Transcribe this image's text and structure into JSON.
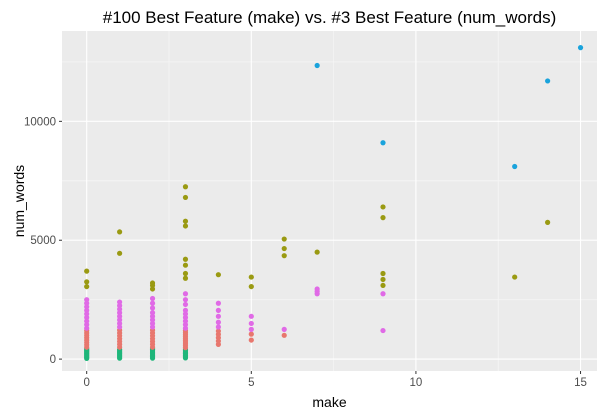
{
  "chart_data": {
    "type": "scatter",
    "title": "#100 Best Feature (make) vs. #3 Best Feature (num_words)",
    "xlabel": "make",
    "ylabel": "num_words",
    "xlim": [
      -0.75,
      15.5
    ],
    "ylim": [
      -500,
      13800
    ],
    "x_ticks": [
      0,
      5,
      10,
      15
    ],
    "y_ticks": [
      0,
      5000,
      10000
    ],
    "x_tick_labels": [
      "0",
      "5",
      "10",
      "15"
    ],
    "y_tick_labels": [
      "0",
      "5000",
      "10000"
    ],
    "grid": true,
    "legend": "none",
    "colors": {
      "panel_background": "#ebebeb",
      "grid_major": "#ffffff",
      "grid_minor": "#f5f5f5",
      "group1": "#f8766d",
      "group2": "#7cae00",
      "group3": "#00bfc4",
      "group4": "#c77cff",
      "group1_render": "#e8776e",
      "group2_render": "#9a9a12",
      "group3_render": "#1aa3dc",
      "group4_render": "#e06ae6",
      "green_render": "#1eb67a"
    },
    "series": [
      {
        "color_key": "green_render",
        "points": [
          [
            0,
            30
          ],
          [
            0,
            80
          ],
          [
            0,
            130
          ],
          [
            0,
            180
          ],
          [
            0,
            230
          ],
          [
            0,
            280
          ],
          [
            0,
            330
          ],
          [
            0,
            380
          ],
          [
            0,
            430
          ],
          [
            1,
            40
          ],
          [
            1,
            100
          ],
          [
            1,
            160
          ],
          [
            1,
            220
          ],
          [
            1,
            280
          ],
          [
            1,
            340
          ],
          [
            1,
            400
          ],
          [
            2,
            40
          ],
          [
            2,
            100
          ],
          [
            2,
            160
          ],
          [
            2,
            220
          ],
          [
            2,
            280
          ],
          [
            2,
            340
          ],
          [
            2,
            400
          ],
          [
            2,
            450
          ],
          [
            3,
            50
          ],
          [
            3,
            110
          ],
          [
            3,
            170
          ],
          [
            3,
            230
          ],
          [
            3,
            290
          ],
          [
            3,
            350
          ],
          [
            3,
            410
          ]
        ]
      },
      {
        "color_key": "group1_render",
        "points": [
          [
            0,
            500
          ],
          [
            0,
            600
          ],
          [
            0,
            700
          ],
          [
            0,
            800
          ],
          [
            0,
            900
          ],
          [
            0,
            1000
          ],
          [
            0,
            1100
          ],
          [
            0,
            1200
          ],
          [
            1,
            500
          ],
          [
            1,
            620
          ],
          [
            1,
            740
          ],
          [
            1,
            860
          ],
          [
            1,
            980
          ],
          [
            1,
            1100
          ],
          [
            1,
            1220
          ],
          [
            2,
            500
          ],
          [
            2,
            620
          ],
          [
            2,
            740
          ],
          [
            2,
            860
          ],
          [
            2,
            980
          ],
          [
            2,
            1100
          ],
          [
            2,
            1220
          ],
          [
            3,
            480
          ],
          [
            3,
            560
          ],
          [
            3,
            640
          ],
          [
            3,
            720
          ],
          [
            3,
            800
          ],
          [
            3,
            880
          ],
          [
            3,
            960
          ],
          [
            3,
            1040
          ],
          [
            3,
            1120
          ],
          [
            3,
            1200
          ],
          [
            4,
            620
          ],
          [
            4,
            760
          ],
          [
            4,
            900
          ],
          [
            4,
            1040
          ],
          [
            4,
            1180
          ],
          [
            5,
            800
          ],
          [
            5,
            1050
          ],
          [
            6,
            1000
          ]
        ]
      },
      {
        "color_key": "group4_render",
        "points": [
          [
            0,
            1300
          ],
          [
            0,
            1450
          ],
          [
            0,
            1600
          ],
          [
            0,
            1750
          ],
          [
            0,
            1900
          ],
          [
            0,
            2050
          ],
          [
            0,
            2200
          ],
          [
            0,
            2350
          ],
          [
            0,
            2500
          ],
          [
            1,
            1350
          ],
          [
            1,
            1500
          ],
          [
            1,
            1650
          ],
          [
            1,
            1800
          ],
          [
            1,
            1950
          ],
          [
            1,
            2100
          ],
          [
            1,
            2250
          ],
          [
            1,
            2400
          ],
          [
            2,
            1350
          ],
          [
            2,
            1500
          ],
          [
            2,
            1650
          ],
          [
            2,
            1800
          ],
          [
            2,
            1950
          ],
          [
            2,
            2150
          ],
          [
            2,
            2350
          ],
          [
            2,
            2550
          ],
          [
            3,
            1300
          ],
          [
            3,
            1450
          ],
          [
            3,
            1600
          ],
          [
            3,
            1750
          ],
          [
            3,
            1900
          ],
          [
            3,
            2050
          ],
          [
            3,
            2300
          ],
          [
            3,
            2500
          ],
          [
            3,
            2750
          ],
          [
            4,
            1350
          ],
          [
            4,
            1550
          ],
          [
            4,
            1800
          ],
          [
            4,
            2050
          ],
          [
            4,
            2350
          ],
          [
            5,
            1250
          ],
          [
            5,
            1500
          ],
          [
            5,
            1800
          ],
          [
            6,
            1250
          ],
          [
            7,
            2750
          ],
          [
            7,
            2850
          ],
          [
            7,
            2950
          ],
          [
            9,
            1200
          ],
          [
            9,
            2750
          ]
        ]
      },
      {
        "color_key": "group2_render",
        "points": [
          [
            0,
            3050
          ],
          [
            0,
            3250
          ],
          [
            0,
            3700
          ],
          [
            1,
            4450
          ],
          [
            1,
            5350
          ],
          [
            2,
            2950
          ],
          [
            2,
            3100
          ],
          [
            2,
            3200
          ],
          [
            3,
            3400
          ],
          [
            3,
            3600
          ],
          [
            3,
            3950
          ],
          [
            3,
            4200
          ],
          [
            3,
            5600
          ],
          [
            3,
            5800
          ],
          [
            3,
            6800
          ],
          [
            3,
            7250
          ],
          [
            4,
            3550
          ],
          [
            5,
            3050
          ],
          [
            5,
            3450
          ],
          [
            6,
            4350
          ],
          [
            6,
            4650
          ],
          [
            6,
            5050
          ],
          [
            7,
            4500
          ],
          [
            9,
            3100
          ],
          [
            9,
            3350
          ],
          [
            9,
            3600
          ],
          [
            9,
            5950
          ],
          [
            9,
            6400
          ],
          [
            13,
            3450
          ],
          [
            14,
            5750
          ]
        ]
      },
      {
        "color_key": "group3_render",
        "points": [
          [
            7,
            12350
          ],
          [
            9,
            9100
          ],
          [
            13,
            8100
          ],
          [
            14,
            11700
          ],
          [
            15,
            13100
          ]
        ]
      }
    ]
  }
}
